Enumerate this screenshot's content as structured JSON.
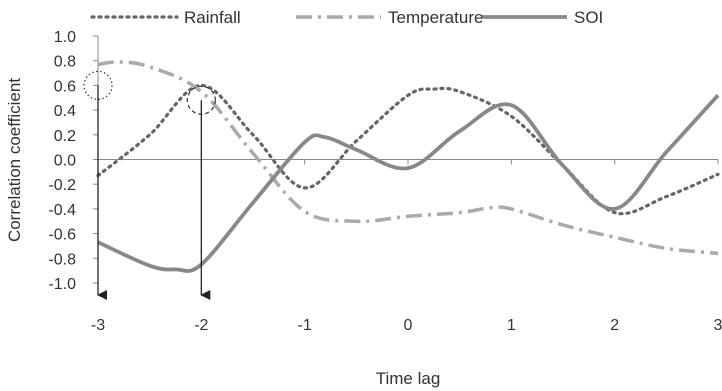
{
  "chart_data": {
    "type": "line",
    "xlabel": "Time lag",
    "ylabel": "Correlation coefficient",
    "xlim": [
      -3,
      3
    ],
    "ylim": [
      -1.0,
      1.0
    ],
    "x_ticks": [
      "-3",
      "-2",
      "-1",
      "0",
      "1",
      "2",
      "3"
    ],
    "y_ticks": [
      "1.0",
      "0.8",
      "0.6",
      "0.4",
      "0.2",
      "0.0",
      "-0.2",
      "-0.4",
      "-0.6",
      "-0.8",
      "-1.0"
    ],
    "grid": false,
    "legend_position": "top",
    "series": [
      {
        "name": "Rainfall",
        "style": "dotted",
        "color": "#666666",
        "points": [
          [
            -3,
            -0.13
          ],
          [
            -2.5,
            0.2
          ],
          [
            -2,
            0.6
          ],
          [
            -1.5,
            0.2
          ],
          [
            -1,
            -0.23
          ],
          [
            -0.5,
            0.15
          ],
          [
            0,
            0.52
          ],
          [
            0.25,
            0.57
          ],
          [
            0.5,
            0.55
          ],
          [
            1,
            0.35
          ],
          [
            1.5,
            -0.05
          ],
          [
            2,
            -0.43
          ],
          [
            2.5,
            -0.3
          ],
          [
            3,
            -0.12
          ]
        ]
      },
      {
        "name": "Temperature",
        "style": "dashdot",
        "color": "#aaaaaa",
        "points": [
          [
            -3,
            0.77
          ],
          [
            -2.8,
            0.79
          ],
          [
            -2.5,
            0.75
          ],
          [
            -2,
            0.55
          ],
          [
            -1.5,
            0.05
          ],
          [
            -1,
            -0.42
          ],
          [
            -0.5,
            -0.5
          ],
          [
            0,
            -0.46
          ],
          [
            0.5,
            -0.43
          ],
          [
            0.8,
            -0.39
          ],
          [
            1,
            -0.4
          ],
          [
            1.5,
            -0.53
          ],
          [
            2,
            -0.63
          ],
          [
            2.5,
            -0.72
          ],
          [
            3,
            -0.76
          ]
        ]
      },
      {
        "name": "SOI",
        "style": "solid",
        "color": "#888888",
        "points": [
          [
            -3,
            -0.67
          ],
          [
            -2.5,
            -0.86
          ],
          [
            -2.25,
            -0.89
          ],
          [
            -2,
            -0.85
          ],
          [
            -1.5,
            -0.35
          ],
          [
            -1,
            0.14
          ],
          [
            -0.8,
            0.18
          ],
          [
            -0.5,
            0.08
          ],
          [
            0,
            -0.07
          ],
          [
            0.5,
            0.23
          ],
          [
            1,
            0.44
          ],
          [
            1.5,
            -0.05
          ],
          [
            2,
            -0.4
          ],
          [
            2.5,
            0.06
          ],
          [
            3,
            0.52
          ]
        ]
      }
    ],
    "annotations": [
      {
        "type": "circle",
        "x": -3,
        "y": 0.6,
        "style": "dotted"
      },
      {
        "type": "circle",
        "x": -2,
        "y": 0.48,
        "style": "dashed"
      },
      {
        "type": "arrow",
        "x": -3,
        "from_y": 0.6,
        "to_y": -1.0
      },
      {
        "type": "arrow",
        "x": -2,
        "from_y": 0.48,
        "to_y": -1.0
      }
    ]
  }
}
